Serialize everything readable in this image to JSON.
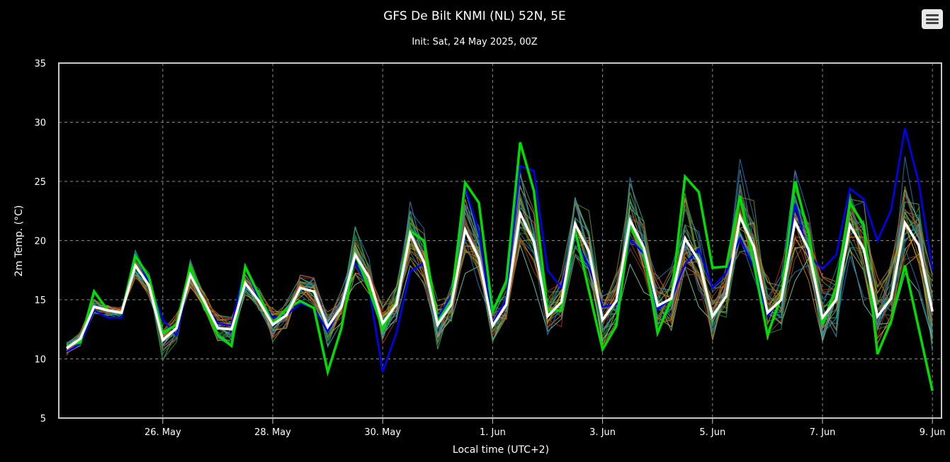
{
  "menu": {
    "icon": "hamburger-menu-icon"
  },
  "chart_data": {
    "type": "line",
    "title": "GFS De Bilt KNMI (NL) 52N, 5E",
    "subtitle": "Init: Sat, 24 May 2025, 00Z",
    "xlabel": "Local time (UTC+2)",
    "ylabel": "2m Temp. (°C)",
    "ylim": [
      5,
      35
    ],
    "yticks": [
      "5",
      "10",
      "15",
      "20",
      "25",
      "30",
      "35"
    ],
    "xticks": [
      "26. May",
      "28. May",
      "30. May",
      "1. Jun",
      "3. Jun",
      "5. Jun",
      "7. Jun",
      "9. Jun"
    ],
    "grid": true,
    "legend": "none",
    "time_step_hours": 6,
    "background": "#000000",
    "mean_color": "#ffffff",
    "control_color": "#00dd00",
    "operational_color": "#0000ff",
    "member_colors": [
      "#1f77b4",
      "#17a2b8",
      "#20b2aa",
      "#2e8b57",
      "#3cb371",
      "#228b22",
      "#6b8e23",
      "#b8860b",
      "#d2a000",
      "#cd853f",
      "#d2691e",
      "#b22222",
      "#8b4513",
      "#4682b4",
      "#008b8b",
      "#66cdaa"
    ],
    "mean": [
      10.9,
      11.7,
      14.4,
      14.1,
      13.9,
      17.9,
      16.2,
      11.6,
      12.6,
      17.1,
      14.9,
      12.6,
      12.5,
      16.4,
      14.9,
      12.9,
      13.7,
      16.0,
      15.7,
      12.7,
      14.4,
      18.8,
      16.9,
      13.0,
      14.6,
      20.6,
      18.2,
      12.9,
      14.6,
      20.9,
      18.5,
      12.8,
      14.6,
      22.3,
      19.9,
      13.6,
      14.8,
      21.4,
      19.1,
      13.3,
      14.9,
      21.7,
      19.4,
      14.5,
      15.1,
      20.2,
      18.3,
      13.6,
      15.3,
      22.0,
      19.5,
      13.9,
      15.0,
      21.6,
      19.2,
      13.5,
      15.0,
      21.3,
      19.3,
      13.6,
      15.1,
      21.5,
      19.6,
      14.0
    ],
    "control": [
      11.1,
      11.4,
      15.7,
      14.1,
      13.9,
      18.7,
      16.9,
      12.2,
      12.9,
      17.8,
      14.5,
      12.0,
      11.1,
      17.8,
      15.4,
      13.0,
      14.2,
      14.9,
      14.3,
      8.9,
      12.6,
      18.9,
      15.9,
      12.5,
      14.9,
      20.8,
      20.0,
      13.1,
      15.0,
      24.9,
      23.2,
      14.0,
      16.6,
      28.3,
      24.2,
      14.1,
      14.1,
      20.9,
      15.8,
      10.8,
      12.8,
      21.3,
      19.1,
      12.2,
      15.0,
      25.4,
      24.1,
      17.7,
      17.8,
      23.8,
      18.1,
      12.0,
      15.3,
      25.0,
      20.5,
      12.9,
      16.1,
      23.2,
      21.3,
      10.4,
      13.2,
      17.9,
      12.6,
      7.3
    ],
    "operational": [
      10.6,
      11.3,
      14.1,
      13.5,
      13.5,
      18.8,
      16.4,
      13.3,
      12.0,
      17.1,
      14.7,
      13.0,
      12.8,
      17.8,
      15.0,
      13.5,
      13.7,
      14.7,
      14.3,
      12.3,
      14.5,
      18.1,
      16.0,
      8.9,
      12.2,
      17.4,
      18.1,
      13.4,
      15.4,
      24.5,
      20.7,
      13.0,
      15.1,
      26.3,
      25.9,
      17.5,
      16.0,
      20.3,
      17.8,
      14.4,
      14.6,
      20.1,
      18.9,
      14.2,
      15.1,
      18.0,
      19.3,
      16.0,
      17.3,
      20.2,
      17.8,
      13.6,
      15.2,
      23.1,
      18.7,
      17.6,
      18.8,
      24.4,
      23.5,
      20.0,
      22.6,
      29.5,
      24.9,
      17.5
    ],
    "members_shown": 30
  }
}
